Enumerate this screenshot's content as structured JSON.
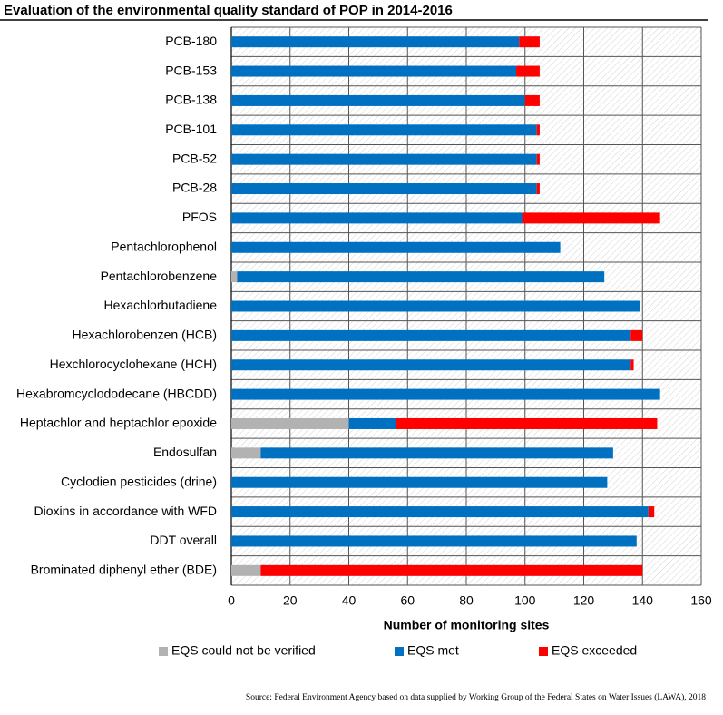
{
  "chart_data": {
    "type": "stacked-barh",
    "title": "Evaluation of the environmental quality standard of POP in 2014-2016",
    "x_label": "Number of monitoring sites",
    "source": "Source: Federal Environment Agency based on data supplied by Working Group of the Federal States on Water Issues (LAWA), 2018",
    "categories": [
      "PCB-180",
      "PCB-153",
      "PCB-138",
      "PCB-101",
      "PCB-52",
      "PCB-28",
      "PFOS",
      "Pentachlorophenol",
      "Pentachlorobenzene",
      "Hexachlorbutadiene",
      "Hexachlorobenzen (HCB)",
      "Hexchlorocyclohexane (HCH)",
      "Hexabromcyclododecane (HBCDD)",
      "Heptachlor and heptachlor epoxide",
      "Endosulfan",
      "Cyclodien pesticides (drine)",
      "Dioxins in accordance with WFD",
      "DDT overall",
      "Brominated diphenyl ether (BDE)"
    ],
    "series": [
      {
        "name": "EQS could not be verified",
        "color": "#b2b2b2",
        "values": [
          0,
          0,
          0,
          0,
          0,
          0,
          0,
          0,
          2,
          0,
          0,
          0,
          0,
          40,
          10,
          0,
          0,
          0,
          10
        ]
      },
      {
        "name": "EQS met",
        "color": "#0070c0",
        "values": [
          98,
          97,
          100,
          104,
          104,
          104,
          99,
          112,
          125,
          139,
          136,
          136,
          146,
          16,
          120,
          128,
          142,
          138,
          0
        ]
      },
      {
        "name": "EQS exceeded",
        "color": "#ff0000",
        "values": [
          7,
          8,
          5,
          1,
          1,
          1,
          47,
          0,
          0,
          0,
          4,
          1,
          0,
          89,
          0,
          0,
          2,
          0,
          130
        ]
      }
    ],
    "xlim": [
      0,
      160
    ],
    "xticks": [
      0,
      20,
      40,
      60,
      80,
      100,
      120,
      140,
      160
    ],
    "grid": true
  }
}
